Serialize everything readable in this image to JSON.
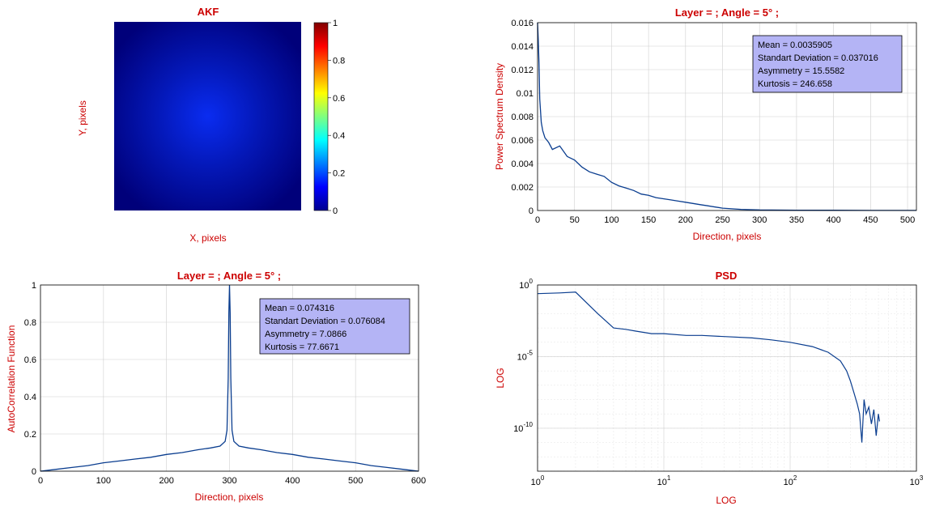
{
  "colors": {
    "title": "#cc0000",
    "line": "#0a3d8f",
    "stats_box": "#b4b4f5",
    "grid": "#cccccc",
    "heatmap_center": "#0a2cf0",
    "heatmap_edge": "#00007a"
  },
  "chart_data": [
    {
      "type": "heatmap",
      "title": "AKF",
      "xlabel": "X, pixels",
      "ylabel": "Y, pixels",
      "colormap": "jet",
      "clim": [
        0,
        1
      ],
      "colorbar_ticks": [
        "0",
        "0.2",
        "0.4",
        "0.6",
        "0.8",
        "1"
      ],
      "description_values": {
        "center_value": 0.15,
        "edge_value": 0.02
      }
    },
    {
      "type": "line",
      "title": "Layer = ;   Angle = 5° ;",
      "xlabel": "Direction, pixels",
      "ylabel": "Power Spectrum Density",
      "xlim": [
        0,
        512
      ],
      "ylim": [
        0,
        0.016
      ],
      "x_ticks": [
        "0",
        "50",
        "100",
        "150",
        "200",
        "250",
        "300",
        "350",
        "400",
        "450",
        "500"
      ],
      "y_ticks": [
        "0",
        "0.002",
        "0.004",
        "0.006",
        "0.008",
        "0.01",
        "0.012",
        "0.014",
        "0.016"
      ],
      "grid": true,
      "series": [
        {
          "x": [
            0,
            1,
            2,
            3,
            5,
            7,
            10,
            15,
            20,
            30,
            40,
            50,
            60,
            70,
            80,
            90,
            100,
            110,
            120,
            130,
            140,
            150,
            160,
            170,
            180,
            190,
            200,
            210,
            220,
            230,
            240,
            250,
            275,
            300,
            350,
            400,
            450,
            500,
            512
          ],
          "y": [
            0.016,
            0.0145,
            0.0125,
            0.0095,
            0.0075,
            0.0068,
            0.0062,
            0.0058,
            0.0052,
            0.0055,
            0.0046,
            0.0043,
            0.0037,
            0.0033,
            0.0031,
            0.0029,
            0.0024,
            0.0021,
            0.0019,
            0.0017,
            0.0014,
            0.0013,
            0.0011,
            0.001,
            0.0009,
            0.0008,
            0.0007,
            0.0006,
            0.0005,
            0.0004,
            0.0003,
            0.0002,
            0.0001,
            5e-05,
            3e-05,
            2e-05,
            1e-05,
            1e-05,
            1e-05
          ]
        }
      ],
      "stats": [
        "Mean = 0.0035905",
        "Standart Deviation = 0.037016",
        "Asymmetry = 15.5582",
        "Kurtosis = 246.658"
      ]
    },
    {
      "type": "line",
      "title": "Layer = ;   Angle = 5° ;",
      "xlabel": "Direction, pixels",
      "ylabel": "AutoCorrelation Function",
      "xlim": [
        0,
        600
      ],
      "ylim": [
        0,
        1
      ],
      "x_ticks": [
        "0",
        "100",
        "200",
        "300",
        "400",
        "500",
        "600"
      ],
      "y_ticks": [
        "0",
        "0.2",
        "0.4",
        "0.6",
        "0.8",
        "1"
      ],
      "grid": true,
      "series": [
        {
          "x": [
            0,
            25,
            50,
            75,
            100,
            125,
            150,
            175,
            200,
            225,
            250,
            270,
            285,
            293,
            296,
            298,
            299,
            300,
            301,
            302,
            304,
            307,
            315,
            330,
            350,
            375,
            400,
            425,
            450,
            475,
            500,
            525,
            550,
            575,
            600
          ],
          "y": [
            0,
            0.01,
            0.02,
            0.03,
            0.045,
            0.055,
            0.065,
            0.075,
            0.09,
            0.1,
            0.115,
            0.125,
            0.135,
            0.16,
            0.22,
            0.5,
            0.85,
            1,
            0.85,
            0.5,
            0.22,
            0.16,
            0.135,
            0.125,
            0.115,
            0.1,
            0.09,
            0.075,
            0.065,
            0.055,
            0.045,
            0.03,
            0.02,
            0.01,
            0
          ]
        }
      ],
      "stats": [
        "Mean = 0.074316",
        "Standart Deviation = 0.076084",
        "Asymmetry = 7.0866",
        "Kurtosis = 77.6671"
      ]
    },
    {
      "type": "line",
      "title": "PSD",
      "xlabel": "LOG",
      "ylabel": "LOG",
      "xscale": "log",
      "yscale": "log",
      "xlim": [
        1,
        1000
      ],
      "ylim": [
        1e-13,
        1
      ],
      "x_ticks": [
        {
          "base": "10",
          "exp": "0"
        },
        {
          "base": "10",
          "exp": "1"
        },
        {
          "base": "10",
          "exp": "2"
        },
        {
          "base": "10",
          "exp": "3"
        }
      ],
      "y_ticks": [
        {
          "base": "10",
          "exp": "0"
        },
        {
          "base": "10",
          "exp": "-5"
        },
        {
          "base": "10",
          "exp": "-10"
        }
      ],
      "grid": true,
      "series": [
        {
          "x": [
            1,
            1.5,
            2,
            3,
            4,
            5,
            6,
            8,
            10,
            15,
            20,
            30,
            50,
            70,
            100,
            150,
            200,
            250,
            280,
            300,
            320,
            340,
            355,
            370,
            385,
            400,
            420,
            440,
            460,
            480,
            500,
            510
          ],
          "y": [
            0.25,
            0.28,
            0.32,
            0.01,
            0.001,
            0.0008,
            0.0006,
            0.0004,
            0.0004,
            0.0003,
            0.0003,
            0.00025,
            0.0002,
            0.00015,
            0.0001,
            5e-05,
            2e-05,
            5e-06,
            1e-06,
            2e-07,
            3e-08,
            5e-09,
            1e-09,
            1e-11,
            1e-08,
            1e-09,
            3e-09,
            2e-10,
            2e-09,
            3e-11,
            1e-09,
            3e-10
          ]
        }
      ]
    }
  ]
}
